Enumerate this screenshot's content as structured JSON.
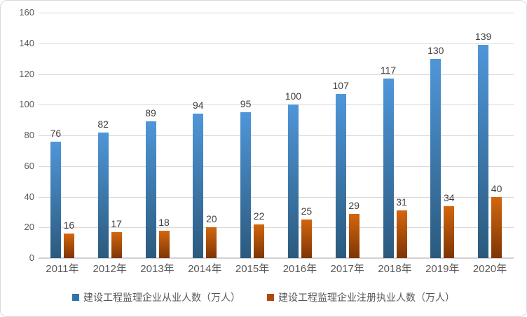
{
  "chart_data": {
    "type": "bar",
    "title": "",
    "categories": [
      "2011年",
      "2012年",
      "2013年",
      "2014年",
      "2015年",
      "2016年",
      "2017年",
      "2018年",
      "2019年",
      "2020年"
    ],
    "series": [
      {
        "name": "建设工程监理企业从业人数（万人）",
        "values": [
          76,
          82,
          89,
          94,
          95,
          100,
          107,
          117,
          130,
          139
        ],
        "bar_color_top": "#4f96d9",
        "bar_color_bottom": "#2b5a7d",
        "legend_color": "#2e75ac"
      },
      {
        "name": "建设工程监理企业注册执业人数（万人）",
        "values": [
          16,
          17,
          18,
          20,
          22,
          25,
          29,
          31,
          34,
          40
        ],
        "bar_color_top": "#d3660e",
        "bar_color_bottom": "#7f3505",
        "legend_color": "#b04a08"
      }
    ],
    "ylim": [
      0,
      160
    ],
    "y_ticks": [
      160,
      140,
      120,
      100,
      80,
      60,
      40,
      20,
      0
    ],
    "grid": "horizontal",
    "legend_position": "bottom",
    "data_labels": true,
    "colors": {
      "grid_line": "#d9d9d9",
      "axis_text": "#595959",
      "data_label_text": "#404040",
      "frame_border": "#d9d9d9",
      "background": "#ffffff"
    }
  }
}
